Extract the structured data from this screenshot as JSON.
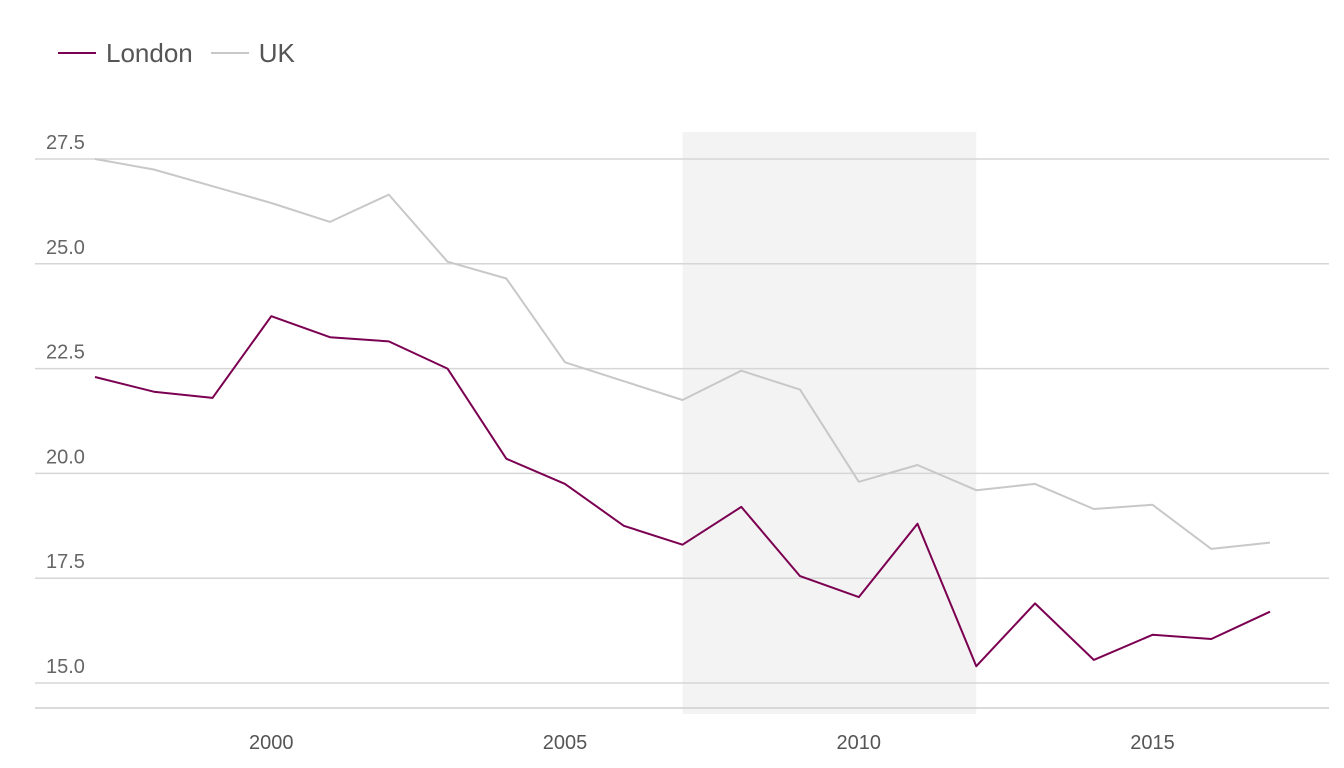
{
  "chart_data": {
    "type": "line",
    "title": "",
    "xlabel": "",
    "ylabel": "",
    "x": [
      1997,
      1998,
      1999,
      2000,
      2001,
      2002,
      2003,
      2004,
      2005,
      2006,
      2007,
      2008,
      2009,
      2010,
      2011,
      2012,
      2013,
      2014,
      2015,
      2016,
      2017
    ],
    "series": [
      {
        "name": "London",
        "color": "#7b0051",
        "values": [
          22.3,
          21.95,
          21.8,
          23.75,
          23.25,
          23.15,
          22.5,
          20.35,
          19.75,
          18.75,
          18.3,
          19.2,
          17.55,
          17.05,
          18.8,
          15.4,
          16.9,
          15.55,
          16.15,
          16.05,
          16.7
        ]
      },
      {
        "name": "UK",
        "color": "#c8c8c8",
        "values": [
          27.5,
          27.25,
          26.85,
          26.45,
          26.0,
          26.65,
          25.05,
          24.65,
          22.65,
          22.2,
          21.75,
          22.45,
          22.0,
          19.8,
          20.2,
          19.6,
          19.75,
          19.15,
          19.25,
          18.2,
          18.35
        ]
      }
    ],
    "ylim": [
      14.4,
      28.1
    ],
    "xlim": [
      1997,
      2018.9
    ],
    "yticks": [
      "15.0",
      "17.5",
      "20.0",
      "22.5",
      "25.0",
      "27.5"
    ],
    "xticks": [
      "2000",
      "2005",
      "2010",
      "2015"
    ],
    "shaded_region": {
      "x_start": 2007,
      "x_end": 2012,
      "color": "#f3f3f3"
    },
    "grid": true,
    "legend_position": "top-left"
  }
}
